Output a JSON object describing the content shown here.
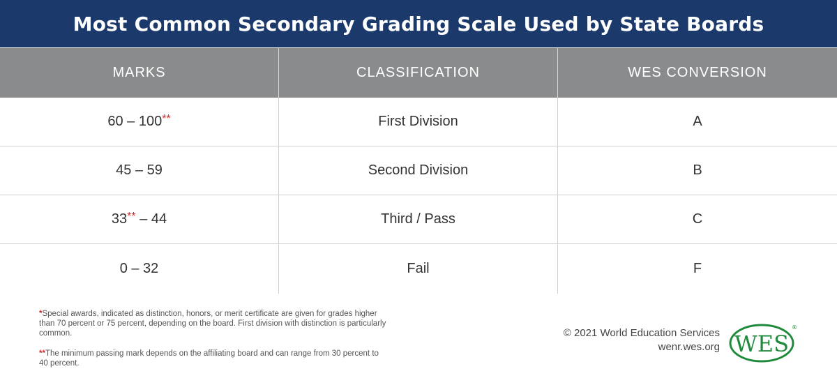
{
  "title": "Most Common Secondary Grading Scale Used by State Boards",
  "table": {
    "headers": [
      "MARKS",
      "CLASSIFICATION",
      "WES CONVERSION"
    ],
    "rows": [
      {
        "marks_pre": "60 – 100",
        "marks_mark": "**",
        "marks_post": "",
        "classification": "First Division",
        "conversion": "A"
      },
      {
        "marks_pre": "45 – 59",
        "marks_mark": "",
        "marks_post": "",
        "classification": "Second Division",
        "conversion": "B"
      },
      {
        "marks_pre": "33",
        "marks_mark": "**",
        "marks_post": " – 44",
        "classification": "Third / Pass",
        "conversion": "C"
      },
      {
        "marks_pre": "0 – 32",
        "marks_mark": "",
        "marks_post": "",
        "classification": "Fail",
        "conversion": "F"
      }
    ]
  },
  "footnotes": [
    {
      "mark": "*",
      "text": "Special awards, indicated as distinction, honors, or merit certificate are given for grades higher than 70 percent or 75 percent, depending on the board. First division with distinction is particularly common."
    },
    {
      "mark": "**",
      "text": "The minimum passing mark depends on the affiliating board and can range from 30 percent to 40 percent."
    }
  ],
  "copyright": {
    "line1": "© 2021 World Education Services",
    "line2": "wenr.wes.org"
  },
  "logo": {
    "text": "WES",
    "reg": "®",
    "color": "#1f8a3b"
  }
}
